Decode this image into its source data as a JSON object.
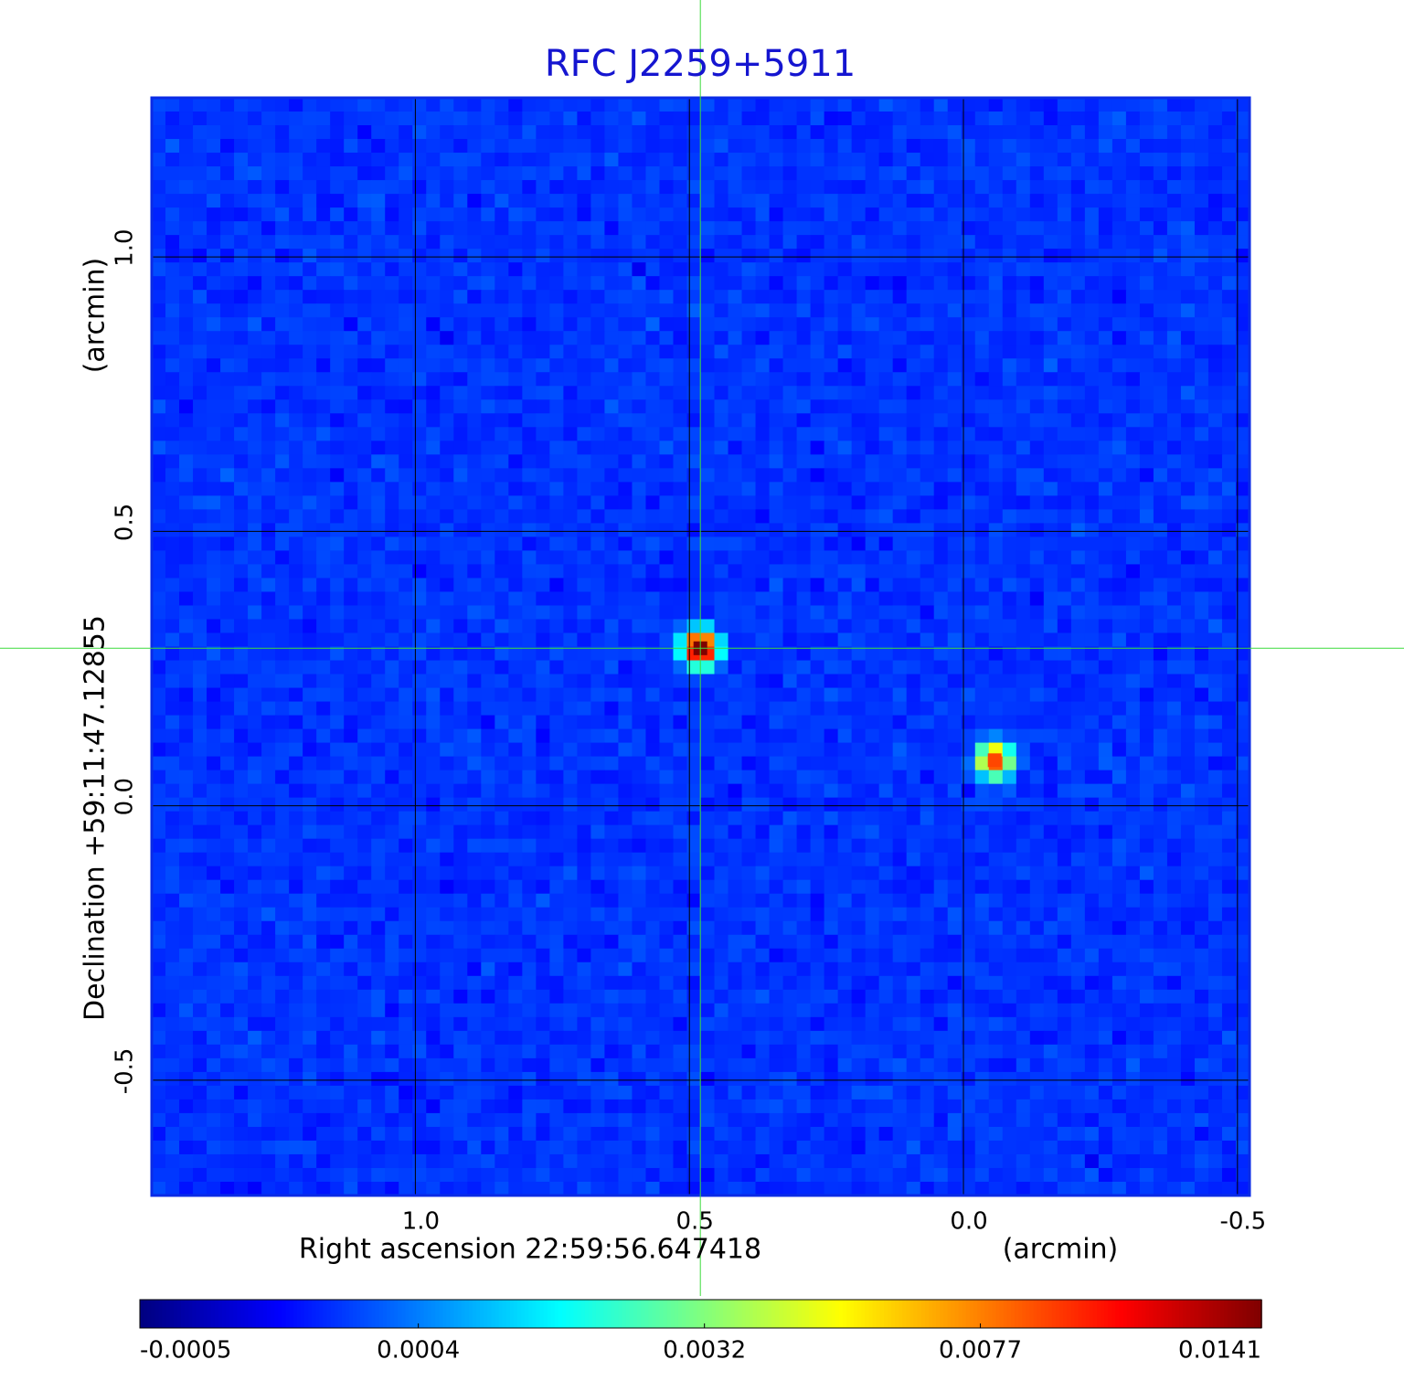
{
  "chart_data": {
    "type": "image",
    "title": "RFC J2259+5911",
    "xlabel": "Right ascension  22:59:56.647418",
    "xunit": "(arcmin)",
    "ylabel": "Declination  +59:11:47.12855",
    "yunit": "(arcmin)",
    "xlim": [
      1.481,
      -0.522
    ],
    "ylim": [
      -0.71,
      1.29
    ],
    "xticks": [
      {
        "value": 1,
        "label": "1.0"
      },
      0.5,
      {
        "value": 0,
        "label": "0.0"
      },
      -0.5
    ],
    "yticks": [
      -0.5,
      {
        "value": 0,
        "label": "0.0"
      },
      0.5,
      {
        "value": 1,
        "label": "1.0"
      }
    ],
    "grid": true,
    "colormap": "jet",
    "colorbar_scale": "sqrt",
    "clim": [
      -0.0005,
      0.0141
    ],
    "colorbar_ticks": [
      -0.0005,
      0.0004,
      0.0032,
      0.0077,
      0.0141
    ],
    "sources": [
      {
        "x": 0.48,
        "y": 0.287,
        "peak": 0.0141
      },
      {
        "x": -0.057,
        "y": 0.083,
        "peak": 0.009
      }
    ]
  }
}
